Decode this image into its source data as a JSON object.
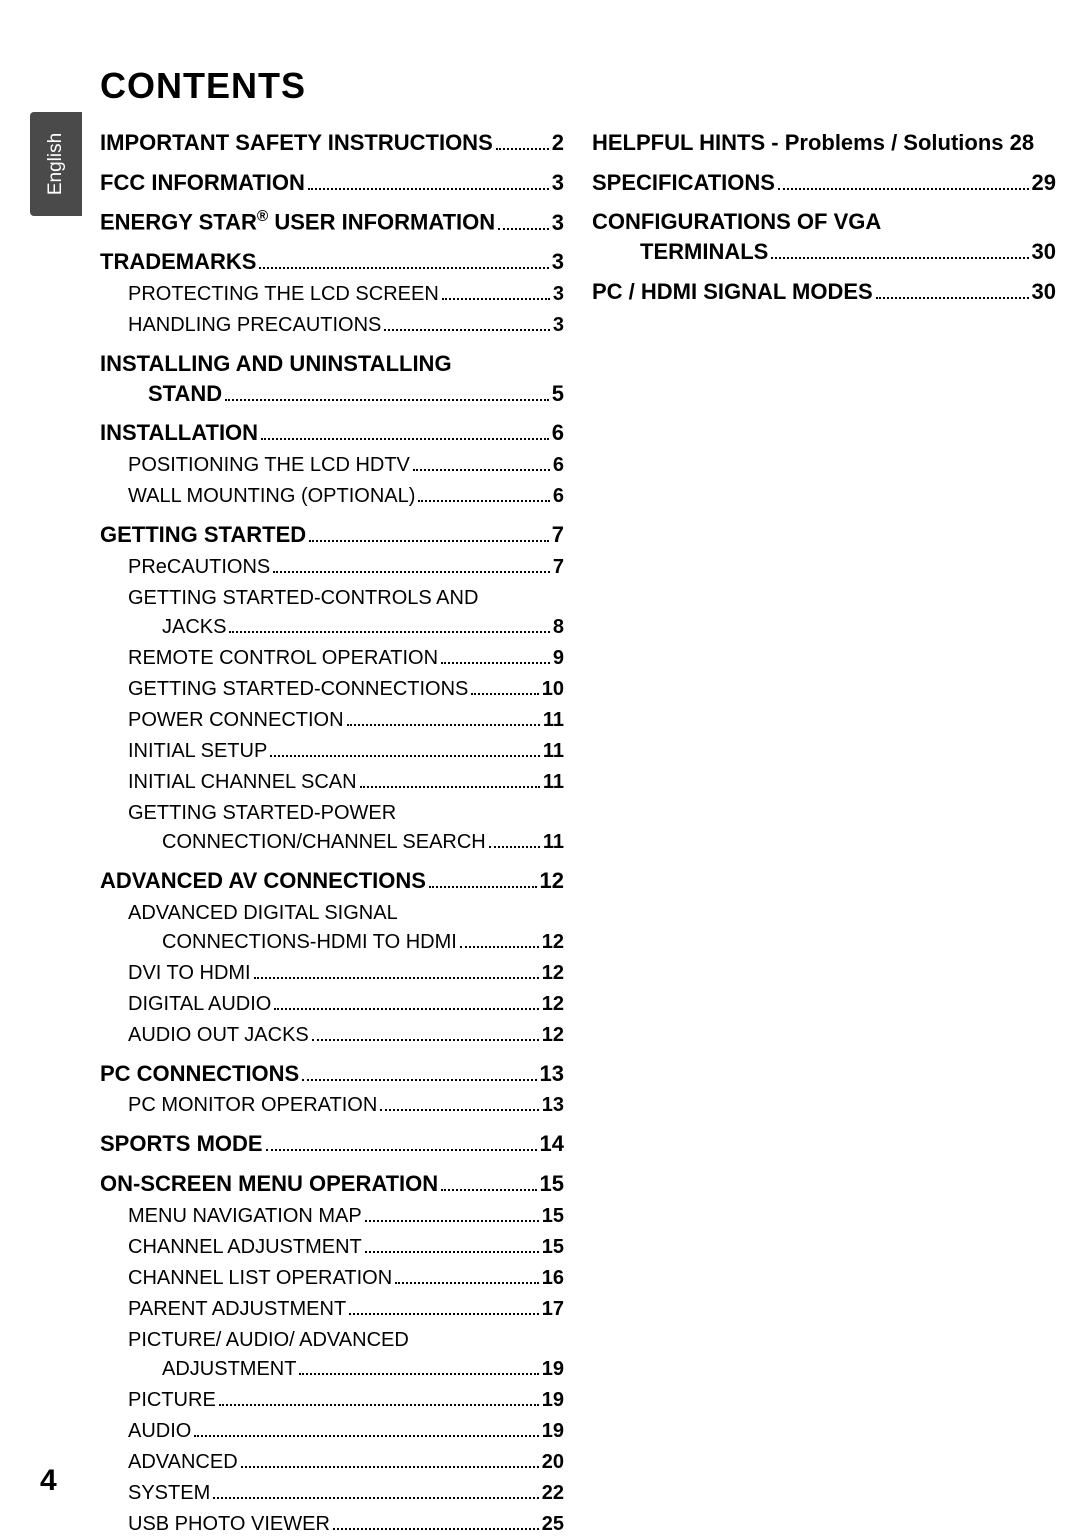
{
  "sideTab": "English",
  "title": "CONTENTS",
  "pageNumber": "4",
  "leftEntries": [
    {
      "lvl": 1,
      "text": "IMPORTANT SAFETY INSTRUCTIONS",
      "page": "2"
    },
    {
      "lvl": 1,
      "text": "FCC INFORMATION",
      "page": "3"
    },
    {
      "lvl": 1,
      "text": "ENERGY STAR<sup>®</sup> USER INFORMATION",
      "page": "3"
    },
    {
      "lvl": 1,
      "text": "TRADEMARKS",
      "page": "3"
    },
    {
      "lvl": 2,
      "text": "PROTECTING THE LCD SCREEN",
      "page": "3"
    },
    {
      "lvl": 2,
      "text": "HANDLING PRECAUTIONS",
      "page": "3"
    },
    {
      "lvl": 1,
      "text": "INSTALLING AND UNINSTALLING"
    },
    {
      "lvl": "1c",
      "text": "STAND",
      "page": "5"
    },
    {
      "lvl": 1,
      "text": "INSTALLATION",
      "page": "6"
    },
    {
      "lvl": 2,
      "text": "POSITIONING THE LCD HDTV",
      "page": "6"
    },
    {
      "lvl": 2,
      "text": "WALL MOUNTING (OPTIONAL)",
      "page": "6"
    },
    {
      "lvl": 1,
      "text": "GETTING STARTED",
      "page": "7"
    },
    {
      "lvl": 2,
      "text": "PReCAUTIONS",
      "page": "7"
    },
    {
      "lvl": 2,
      "text": "GETTING STARTED-CONTROLS AND"
    },
    {
      "lvl": "c",
      "text": "JACKS",
      "page": "8"
    },
    {
      "lvl": 2,
      "text": "REMOTE CONTROL OPERATION",
      "page": "9"
    },
    {
      "lvl": 2,
      "text": "GETTING STARTED-CONNECTIONS",
      "page": "10"
    },
    {
      "lvl": 2,
      "text": "POWER CONNECTION",
      "page": "11"
    },
    {
      "lvl": 2,
      "text": "INITIAL SETUP",
      "page": "11"
    },
    {
      "lvl": 2,
      "text": "INITIAL CHANNEL SCAN",
      "page": "11"
    },
    {
      "lvl": 2,
      "text": "GETTING STARTED-POWER"
    },
    {
      "lvl": "c",
      "text": "CONNECTION/CHANNEL SEARCH",
      "page": "11"
    },
    {
      "lvl": 1,
      "text": "ADVANCED AV CONNECTIONS",
      "page": "12"
    },
    {
      "lvl": 2,
      "text": "ADVANCED DIGITAL SIGNAL"
    },
    {
      "lvl": "c",
      "text": "CONNECTIONS-HDMI TO HDMI",
      "page": "12"
    },
    {
      "lvl": 2,
      "text": "DVI TO HDMI",
      "page": "12"
    },
    {
      "lvl": 2,
      "text": "DIGITAL AUDIO",
      "page": "12"
    },
    {
      "lvl": 2,
      "text": "AUDIO OUT JACKS",
      "page": "12"
    },
    {
      "lvl": 1,
      "text": "PC CONNECTIONS",
      "page": "13"
    },
    {
      "lvl": 2,
      "text": "PC MONITOR OPERATION",
      "page": "13"
    },
    {
      "lvl": 1,
      "text": "SPORTS MODE",
      "page": "14"
    },
    {
      "lvl": 1,
      "text": "ON-SCREEN MENU OPERATION ",
      "page": "15"
    },
    {
      "lvl": 2,
      "text": "MENU NAVIGATION MAP",
      "page": "15"
    },
    {
      "lvl": 2,
      "text": "CHANNEL ADJUSTMENT",
      "page": "15"
    },
    {
      "lvl": 2,
      "text": "CHANNEL LIST OPERATION",
      "page": "16"
    },
    {
      "lvl": 2,
      "text": "PARENT ADJUSTMENT",
      "page": "17"
    },
    {
      "lvl": 2,
      "text": "PICTURE/ AUDIO/ ADVANCED"
    },
    {
      "lvl": "c",
      "text": "ADJUSTMENT",
      "page": "19"
    },
    {
      "lvl": 2,
      "text": "PICTURE",
      "page": "19"
    },
    {
      "lvl": 2,
      "text": "AUDIO",
      "page": "19"
    },
    {
      "lvl": 2,
      "text": "ADVANCED",
      "page": "20"
    },
    {
      "lvl": 2,
      "text": "SYSTEM",
      "page": "22"
    },
    {
      "lvl": 2,
      "text": "USB PHOTO VIEWER",
      "page": "25"
    }
  ],
  "rightEntries": [
    {
      "lvl": 1,
      "text": "HELPFUL HINTS - Problems / Solutions",
      "page": "28",
      "nodots": true
    },
    {
      "lvl": 1,
      "text": "SPECIFICATIONS ",
      "page": "29"
    },
    {
      "lvl": 1,
      "text": "CONFIGURATIONS OF VGA"
    },
    {
      "lvl": "1c",
      "text": "TERMINALS ",
      "page": "30"
    },
    {
      "lvl": 1,
      "text": "PC / HDMI SIGNAL MODES",
      "page": "30"
    }
  ]
}
